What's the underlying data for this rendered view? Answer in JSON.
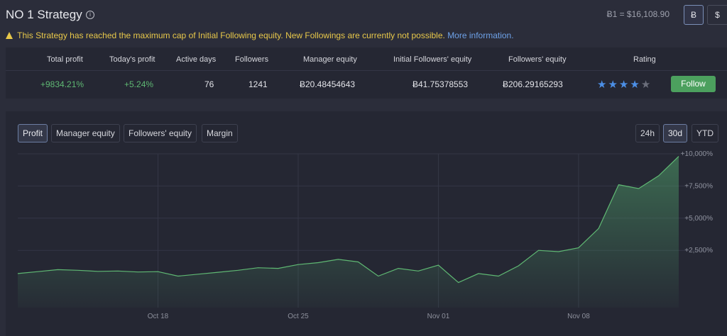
{
  "header": {
    "title": "NO 1 Strategy",
    "info_icon": "info-icon",
    "rate": "Ƀ1 = $16,108.90",
    "currency_btc": "Ƀ",
    "currency_usd": "$"
  },
  "warning": {
    "text": "This Strategy has reached the maximum cap of Initial Following equity. New Followings are currently not possible.",
    "link": "More information."
  },
  "stats": {
    "headers": [
      "Total profit",
      "Today's profit",
      "Active days",
      "Followers",
      "Manager equity",
      "Initial Followers' equity",
      "Followers' equity",
      "Rating"
    ],
    "values": [
      "+9834.21%",
      "+5.24%",
      "76",
      "1241",
      "Ƀ20.48454643",
      "Ƀ41.75378553",
      "Ƀ206.29165293"
    ],
    "rating": 4,
    "rating_max": 5,
    "follow_label": "Follow"
  },
  "chart_tabs": [
    "Profit",
    "Manager equity",
    "Followers' equity",
    "Margin"
  ],
  "chart_tabs_active": "Profit",
  "ranges": [
    "24h",
    "30d",
    "YTD"
  ],
  "range_active": "30d",
  "colors": {
    "accent_green": "#5fb873",
    "star_blue": "#4c8fe6",
    "warning_yellow": "#e8c84a",
    "link_blue": "#6ea2e8"
  },
  "chart_data": {
    "type": "area",
    "x_ticks": [
      "Oct 18",
      "Oct 25",
      "Nov 01",
      "Nov 08"
    ],
    "y_ticks": [
      "+2,500%",
      "+5,000%",
      "+7,500%",
      "+10,000%"
    ],
    "ylim": [
      -2500,
      10000
    ],
    "grid": true,
    "points": [
      [
        "Oct 11",
        700
      ],
      [
        "Oct 12",
        850
      ],
      [
        "Oct 13",
        1000
      ],
      [
        "Oct 14",
        950
      ],
      [
        "Oct 15",
        870
      ],
      [
        "Oct 16",
        900
      ],
      [
        "Oct 17",
        820
      ],
      [
        "Oct 18",
        850
      ],
      [
        "Oct 19",
        500
      ],
      [
        "Oct 20",
        650
      ],
      [
        "Oct 21",
        800
      ],
      [
        "Oct 22",
        950
      ],
      [
        "Oct 23",
        1150
      ],
      [
        "Oct 24",
        1100
      ],
      [
        "Oct 25",
        1400
      ],
      [
        "Oct 26",
        1550
      ],
      [
        "Oct 27",
        1800
      ],
      [
        "Oct 28",
        1600
      ],
      [
        "Oct 29",
        500
      ],
      [
        "Oct 30",
        1100
      ],
      [
        "Oct 31",
        900
      ],
      [
        "Nov 01",
        1350
      ],
      [
        "Nov 02",
        0
      ],
      [
        "Nov 03",
        700
      ],
      [
        "Nov 04",
        500
      ],
      [
        "Nov 05",
        1300
      ],
      [
        "Nov 06",
        2500
      ],
      [
        "Nov 07",
        2400
      ],
      [
        "Nov 08",
        2700
      ],
      [
        "Nov 09",
        4200
      ],
      [
        "Nov 10",
        7600
      ],
      [
        "Nov 11",
        7300
      ],
      [
        "Nov 12",
        8300
      ],
      [
        "Nov 13",
        9800
      ]
    ]
  }
}
